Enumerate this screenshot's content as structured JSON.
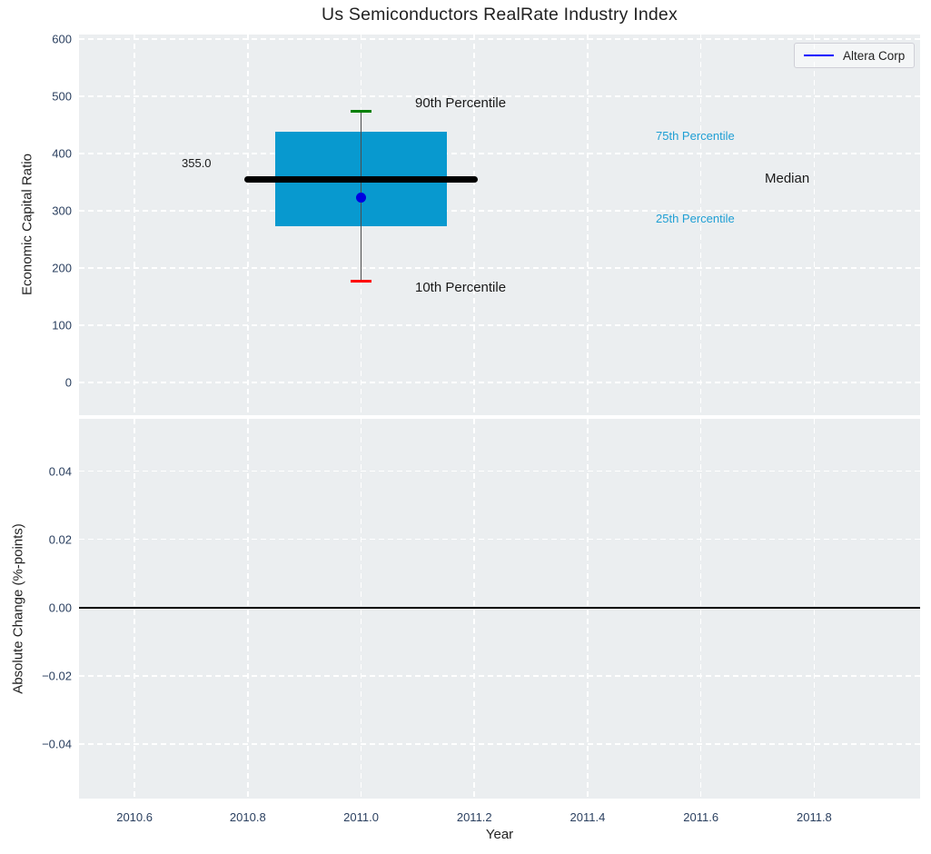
{
  "title": "Us Semiconductors RealRate Industry Index",
  "xlabel": "Year",
  "legend": {
    "label": "Altera Corp"
  },
  "top_plot": {
    "ylabel": "Economic Capital Ratio",
    "labels": {
      "p90": "90th Percentile",
      "p75": "75th Percentile",
      "median": "Median",
      "p25": "25th Percentile",
      "p10": "10th Percentile",
      "median_value": "355.0"
    }
  },
  "bottom_plot": {
    "ylabel": "Absolute Change (%-points)"
  },
  "colors": {
    "box_fill": "#0899cf",
    "percentile_label": "#1f9fd4",
    "whisker": "#4d4d4d",
    "cap_90": "#008000",
    "cap_10": "#ff0000",
    "median_line": "#000000",
    "series_point": "#0000e0",
    "legend_line": "#0000ff",
    "plot_bg": "#ebeef0",
    "grid": "#ffffff",
    "tick_text": "#2a3f5f",
    "zero_line": "#000000"
  },
  "axes": {
    "xticks": [
      {
        "v": 2010.6,
        "label": "2010.6"
      },
      {
        "v": 2010.8,
        "label": "2010.8"
      },
      {
        "v": 2011.0,
        "label": "2011.0"
      },
      {
        "v": 2011.2,
        "label": "2011.2"
      },
      {
        "v": 2011.4,
        "label": "2011.4"
      },
      {
        "v": 2011.6,
        "label": "2011.6"
      },
      {
        "v": 2011.8,
        "label": "2011.8"
      }
    ],
    "top_yticks": [
      {
        "v": 600,
        "label": "600"
      },
      {
        "v": 500,
        "label": "500"
      },
      {
        "v": 400,
        "label": "400"
      },
      {
        "v": 300,
        "label": "300"
      },
      {
        "v": 200,
        "label": "200"
      },
      {
        "v": 100,
        "label": "100"
      },
      {
        "v": 0,
        "label": "0"
      }
    ],
    "bottom_yticks": [
      {
        "v": 0.04,
        "label": "0.04"
      },
      {
        "v": 0.02,
        "label": "0.02"
      },
      {
        "v": 0.0,
        "label": "0.00"
      },
      {
        "v": -0.02,
        "label": "−0.02"
      },
      {
        "v": -0.04,
        "label": "−0.04"
      }
    ]
  },
  "chart_data": [
    {
      "type": "box",
      "title": "Us Semiconductors RealRate Industry Index",
      "xlabel": "Year",
      "ylabel": "Economic Capital Ratio",
      "x": 2011.0,
      "box": {
        "p10": 176,
        "p25": 272,
        "median": 355.0,
        "p75": 438,
        "p90": 474
      },
      "median_value_label": "355.0",
      "series": [
        {
          "name": "Altera Corp",
          "x": 2011.0,
          "y": 323
        }
      ],
      "geometry": {
        "box_halfwidth": 0.152,
        "median_halfwidth": 0.206,
        "cap_halfwidth": 0.018
      },
      "annotations": [
        "90th Percentile",
        "75th Percentile",
        "Median",
        "25th Percentile",
        "10th Percentile",
        "355.0"
      ],
      "xticks": [
        2010.6,
        2010.8,
        2011.0,
        2011.2,
        2011.4,
        2011.6,
        2011.8
      ],
      "yticks": [
        0,
        100,
        200,
        300,
        400,
        500,
        600
      ],
      "xlim": [
        2010.502,
        2011.987
      ],
      "ylim": [
        -57.6,
        607.5
      ],
      "grid": true,
      "legend_position": "top-right"
    },
    {
      "type": "line",
      "xlabel": "Year",
      "ylabel": "Absolute Change (%-points)",
      "series": [],
      "zero_line": 0.0,
      "xticks": [
        2010.6,
        2010.8,
        2011.0,
        2011.2,
        2011.4,
        2011.6,
        2011.8
      ],
      "yticks": [
        -0.04,
        -0.02,
        0.0,
        0.02,
        0.04
      ],
      "xlim": [
        2010.502,
        2011.987
      ],
      "ylim": [
        -0.0559,
        0.0553
      ],
      "grid": true
    }
  ]
}
